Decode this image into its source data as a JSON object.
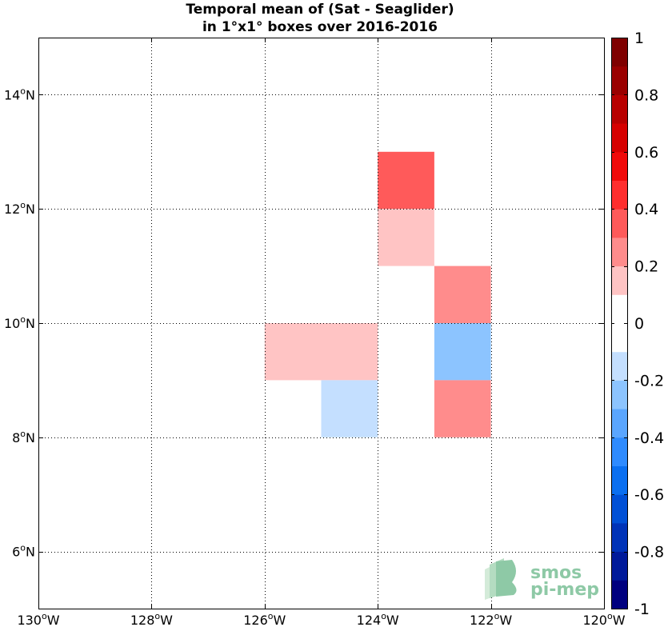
{
  "chart_data": {
    "type": "heatmap",
    "title_line1": "Temporal mean of (Sat - Seaglider)",
    "title_line2": "in 1°x1° boxes over 2016-2016",
    "xlim": [
      -130,
      -120
    ],
    "ylim": [
      5,
      15
    ],
    "grid": true,
    "x_ticks": [
      {
        "value": -130,
        "label": "130°W"
      },
      {
        "value": -128,
        "label": "128°W"
      },
      {
        "value": -126,
        "label": "126°W"
      },
      {
        "value": -124,
        "label": "124°W"
      },
      {
        "value": -122,
        "label": "122°W"
      },
      {
        "value": -120,
        "label": "120°W"
      }
    ],
    "y_ticks": [
      {
        "value": 6,
        "label": "6°N"
      },
      {
        "value": 8,
        "label": "8°N"
      },
      {
        "value": 10,
        "label": "10°N"
      },
      {
        "value": 12,
        "label": "12°N"
      },
      {
        "value": 14,
        "label": "14°N"
      }
    ],
    "cells": [
      {
        "lon_min": -124,
        "lon_max": -123,
        "lat_min": 12,
        "lat_max": 13,
        "value": 0.35
      },
      {
        "lon_min": -124,
        "lon_max": -123,
        "lat_min": 11,
        "lat_max": 12,
        "value": 0.15
      },
      {
        "lon_min": -123,
        "lon_max": -122,
        "lat_min": 10,
        "lat_max": 11,
        "value": 0.25
      },
      {
        "lon_min": -126,
        "lon_max": -125,
        "lat_min": 9,
        "lat_max": 10,
        "value": 0.15
      },
      {
        "lon_min": -125,
        "lon_max": -124,
        "lat_min": 9,
        "lat_max": 10,
        "value": 0.15
      },
      {
        "lon_min": -123,
        "lon_max": -122,
        "lat_min": 9,
        "lat_max": 10,
        "value": -0.25
      },
      {
        "lon_min": -125,
        "lon_max": -124,
        "lat_min": 8,
        "lat_max": 9,
        "value": -0.15
      },
      {
        "lon_min": -123,
        "lon_max": -122,
        "lat_min": 8,
        "lat_max": 9,
        "value": 0.25
      }
    ],
    "colorbar": {
      "range": [
        -1,
        1
      ],
      "ticks": [
        {
          "value": 1,
          "label": "1"
        },
        {
          "value": 0.8,
          "label": "0.8"
        },
        {
          "value": 0.6,
          "label": "0.6"
        },
        {
          "value": 0.4,
          "label": "0.4"
        },
        {
          "value": 0.2,
          "label": "0.2"
        },
        {
          "value": 0,
          "label": "0"
        },
        {
          "value": -0.2,
          "label": "-0.2"
        },
        {
          "value": -0.4,
          "label": "-0.4"
        },
        {
          "value": -0.6,
          "label": "-0.6"
        },
        {
          "value": -0.8,
          "label": "-0.8"
        },
        {
          "value": -1,
          "label": "-1"
        }
      ],
      "colors": [
        "#00007f",
        "#001a9a",
        "#0033b8",
        "#0050d6",
        "#0a6ff0",
        "#2e8bff",
        "#5aa6ff",
        "#8cc4ff",
        "#c4dfff",
        "#ffffff",
        "#ffffff",
        "#ffc4c4",
        "#ff8c8c",
        "#ff5a5a",
        "#ff2e2e",
        "#f00a0a",
        "#d60000",
        "#b80000",
        "#9a0000",
        "#7f0000"
      ]
    }
  },
  "logo": {
    "line1": "smos",
    "line2": "pi-mep",
    "color": "#8ec9a6"
  }
}
